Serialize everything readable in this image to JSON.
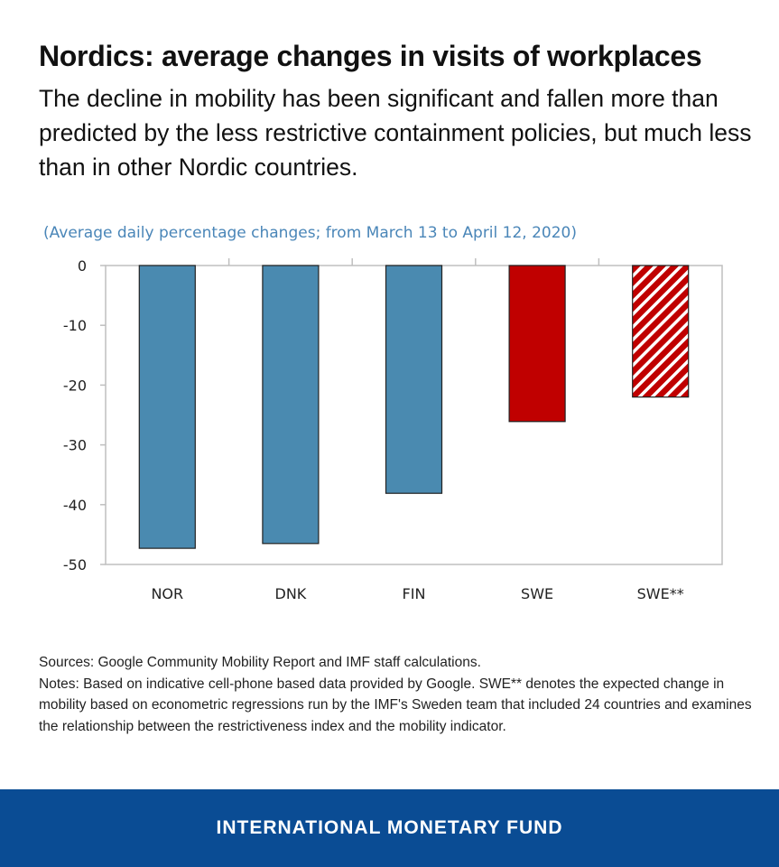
{
  "title": "Nordics: average changes in visits of workplaces",
  "subtitle": "The decline in mobility has been significant and fallen more than predicted by the less restrictive containment policies, but much less than in other Nordic countries.",
  "chart_data": {
    "type": "bar",
    "title": "",
    "subtitle": "(Average daily percentage changes; from March 13 to April 12, 2020)",
    "categories": [
      "NOR",
      "DNK",
      "FIN",
      "SWE",
      "SWE**"
    ],
    "values": [
      -47.3,
      -46.5,
      -38.1,
      -26.1,
      -22.0
    ],
    "colors": [
      "#4a8ab0",
      "#4a8ab0",
      "#4a8ab0",
      "#c00000",
      "#c00000"
    ],
    "patterns": [
      "solid",
      "solid",
      "solid",
      "solid",
      "diagonal-hatch"
    ],
    "ylim": [
      -50,
      0
    ],
    "yticks": [
      0,
      -10,
      -20,
      -30,
      -40,
      -50
    ],
    "grid": false,
    "xlabel": "",
    "ylabel": ""
  },
  "notes": {
    "sources": "Sources: Google Community Mobility Report and IMF staff calculations.",
    "notes": "Notes: Based on indicative cell-phone based data provided by Google. SWE** denotes the expected change in mobility based on econometric regressions run by the IMF's Sweden team that included 24 countries and examines the relationship between the restrictiveness index and the mobility indicator."
  },
  "footer": "INTERNATIONAL MONETARY FUND"
}
